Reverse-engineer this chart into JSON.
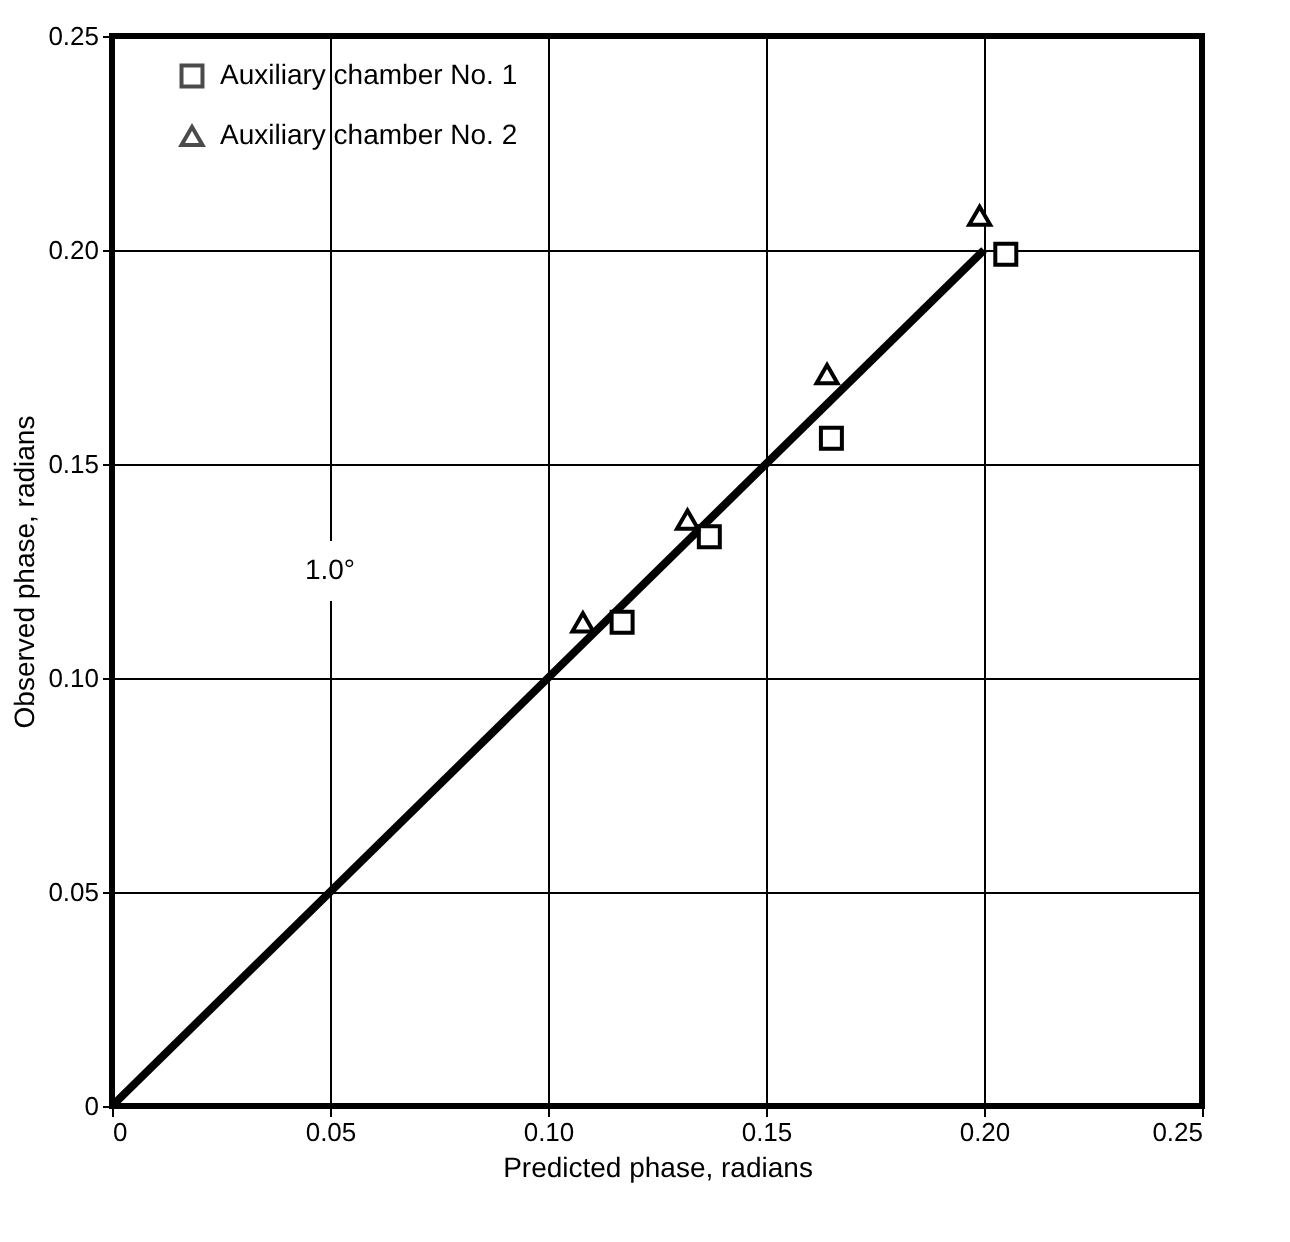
{
  "chart_data": {
    "type": "scatter",
    "xlabel": "Predicted phase, radians",
    "ylabel": "Observed phase, radians",
    "xlim": [
      0,
      0.25
    ],
    "ylim": [
      0,
      0.25
    ],
    "xticks": [
      0,
      0.05,
      {
        "value": 0.1,
        "label": "0.10"
      },
      0.15,
      {
        "value": 0.2,
        "label": "0.20"
      },
      0.25
    ],
    "yticks": [
      0,
      0.05,
      {
        "value": 0.1,
        "label": "0.10"
      },
      0.15,
      {
        "value": 0.2,
        "label": "0.20"
      },
      0.25
    ],
    "grid": true,
    "legend": "top left",
    "annotations": [
      {
        "text": "1.0°",
        "x": 0.05,
        "y": 0.125
      }
    ],
    "series": [
      {
        "name": "Auxiliary chamber No. 1",
        "color": "#000000",
        "marker": "square",
        "x": [
          0.117,
          0.137,
          0.165,
          0.205
        ],
        "values": [
          0.113,
          0.133,
          0.156,
          0.199
        ]
      },
      {
        "name": "Auxiliary chamber No. 2",
        "color": "#000000",
        "marker": "triangle",
        "x": [
          0.108,
          0.132,
          0.164,
          0.199
        ],
        "values": [
          0.113,
          0.137,
          0.171,
          0.208
        ]
      },
      {
        "type": "line",
        "color": "#000000",
        "marker": "none",
        "x": [
          0,
          0.2
        ],
        "values": [
          0,
          0.2
        ]
      }
    ]
  }
}
